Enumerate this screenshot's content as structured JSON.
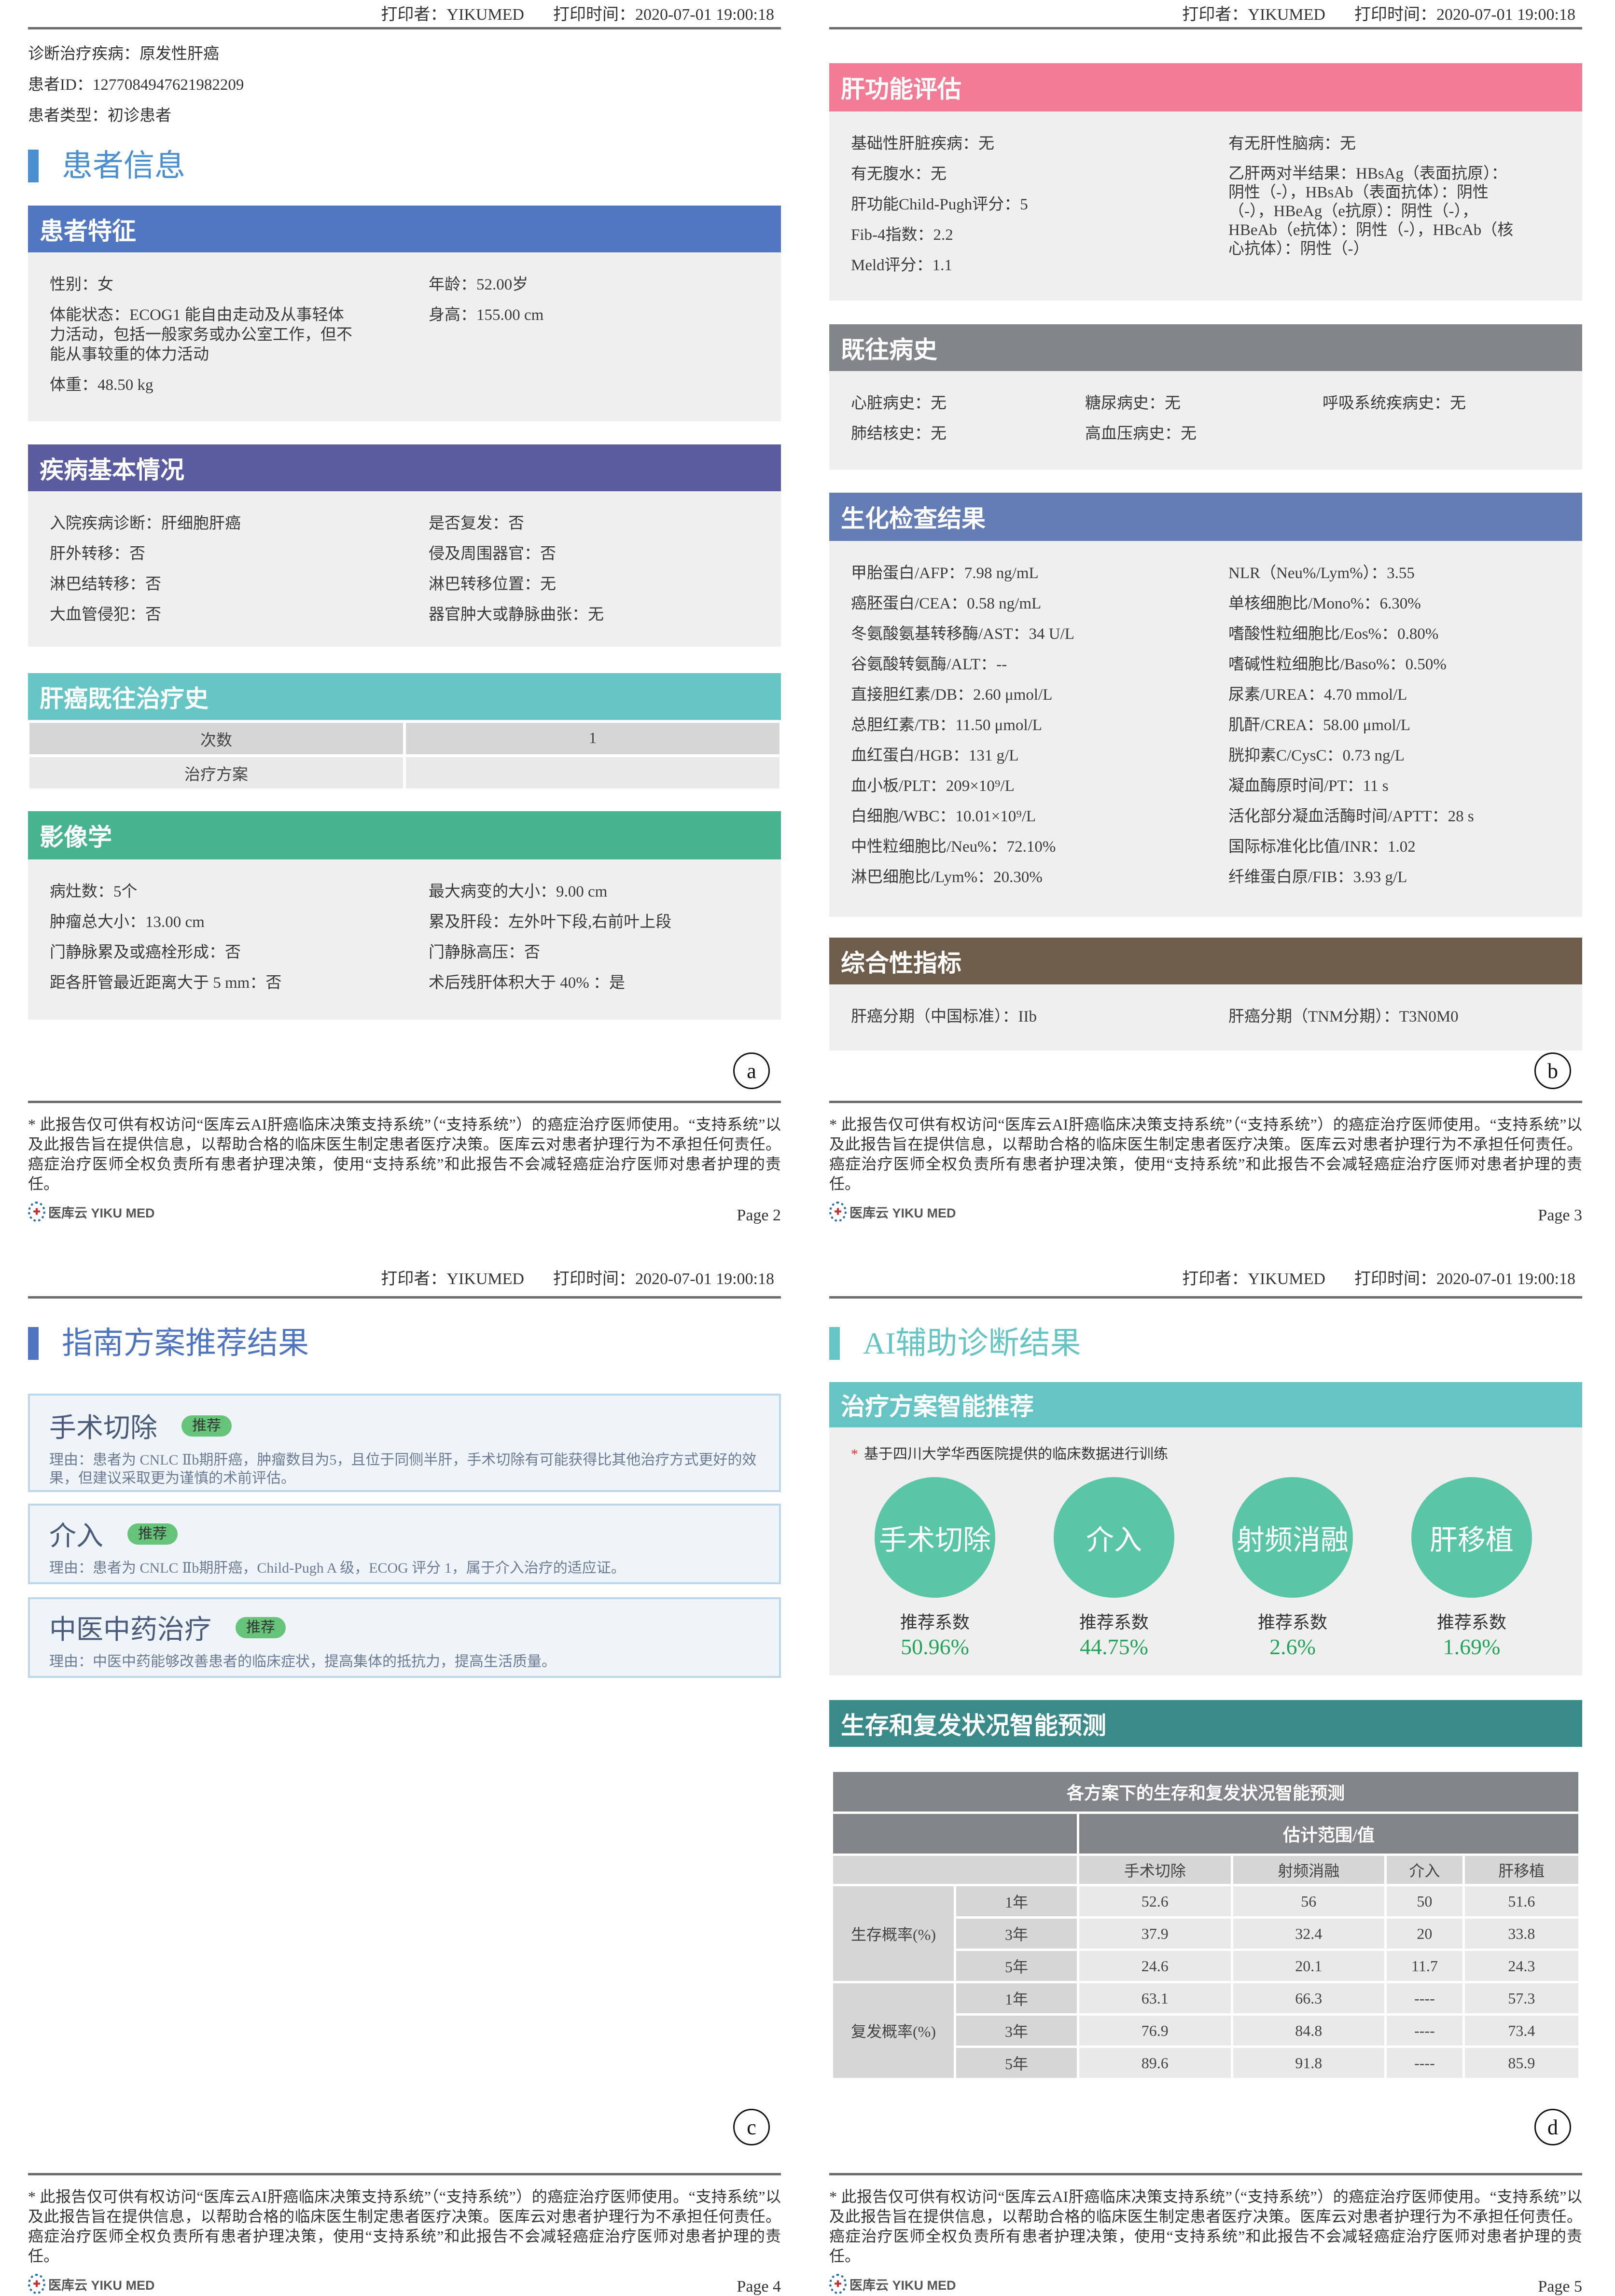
{
  "header": {
    "printer": "打印者：YIKUMED",
    "print_time": "打印时间：2020-07-01 19:00:18"
  },
  "footer": {
    "disclaimer": "* 此报告仅可供有权访问“医库云AI肝癌临床决策支持系统”（“支持系统”）的癌症治疗医师使用。“支持系统”以及此报告旨在提供信息，以帮助合格的临床医生制定患者医疗决策。医库云对患者护理行为不承担任何责任。 癌症治疗医师全权负责所有患者护理决策，使用“支持系统”和此报告不会减轻癌症治疗医师对患者护理的责任。",
    "logo_text": "医库云 YIKU MED"
  },
  "panels": {
    "a": "a",
    "b": "b",
    "c": "c",
    "d": "d"
  },
  "pages": {
    "p2": "Page 2",
    "p3": "Page 3",
    "p4": "Page 4",
    "p5": "Page 5"
  },
  "page_a": {
    "info": [
      "诊断治疗疾病：原发性肝癌",
      "患者ID：1277084947621982209",
      "患者类型：初诊患者"
    ],
    "title": "患者信息",
    "characteristics": {
      "title": "患者特征",
      "left": [
        "性别：女",
        "体能状态：ECOG1 能自由走动及从事轻体力活动，包括一般家务或办公室工作，但不能从事较重的体力活动",
        "体重：48.50 kg"
      ],
      "right": [
        "年龄：52.00岁",
        "身高：155.00 cm"
      ]
    },
    "disease": {
      "title": "疾病基本情况",
      "left": [
        "入院疾病诊断：肝细胞肝癌",
        "肝外转移：否",
        "淋巴结转移：否",
        "大血管侵犯：否"
      ],
      "right": [
        "是否复发：否",
        "侵及周围器官：否",
        "淋巴转移位置：无",
        "器官肿大或静脉曲张：无"
      ]
    },
    "history": {
      "title": "肝癌既往治疗史",
      "rows": [
        [
          "次数",
          "1"
        ],
        [
          "治疗方案",
          ""
        ]
      ]
    },
    "imaging": {
      "title": "影像学",
      "left": [
        "病灶数：5个",
        "肿瘤总大小：13.00 cm",
        "门静脉累及或癌栓形成：否",
        "距各肝管最近距离大于 5 mm：否"
      ],
      "right": [
        "最大病变的大小：9.00 cm",
        "累及肝段：左外叶下段,右前叶上段",
        "门静脉高压：否",
        "术后残肝体积大于 40% ：是"
      ]
    }
  },
  "page_b": {
    "liver": {
      "title": "肝功能评估",
      "left": [
        "基础性肝脏疾病：无",
        "有无腹水：无",
        "肝功能Child-Pugh评分：5",
        "Fib-4指数：2.2",
        "Meld评分：1.1"
      ],
      "right": [
        "有无肝性脑病：无",
        "乙肝两对半结果：HBsAg（表面抗原）：阴性（-），HBsAb（表面抗体）：阴性（-），HBeAg（e抗原）：阴性（-），HBeAb（e抗体）：阴性（-），HBcAb（核心抗体）：阴性（-）"
      ]
    },
    "past": {
      "title": "既往病史",
      "cols": [
        [
          "心脏病史：无",
          "肺结核史：无"
        ],
        [
          "糖尿病史：无",
          "高血压病史：无"
        ],
        [
          "呼吸系统疾病史：无"
        ]
      ]
    },
    "biochem": {
      "title": "生化检查结果",
      "left": [
        "甲胎蛋白/AFP：7.98 ng/mL",
        "癌胚蛋白/CEA：0.58 ng/mL",
        "冬氨酸氨基转移酶/AST：34 U/L",
        "谷氨酸转氨酶/ALT：--",
        "直接胆红素/DB：2.60 μmol/L",
        "总胆红素/TB：11.50 μmol/L",
        "血红蛋白/HGB：131 g/L",
        "血小板/PLT：209×10⁹/L",
        "白细胞/WBC：10.01×10⁹/L",
        "中性粒细胞比/Neu%：72.10%",
        "淋巴细胞比/Lym%：20.30%"
      ],
      "right": [
        "NLR（Neu%/Lym%）：3.55",
        "单核细胞比/Mono%：6.30%",
        "嗜酸性粒细胞比/Eos%：0.80%",
        "嗜碱性粒细胞比/Baso%：0.50%",
        "尿素/UREA：4.70 mmol/L",
        "肌酐/CREA：58.00 μmol/L",
        "胱抑素C/CysC：0.73 ng/L",
        "凝血酶原时间/PT：11 s",
        "活化部分凝血活酶时间/APTT：28 s",
        "国际标准化比值/INR：1.02",
        "纤维蛋白原/FIB：3.93 g/L"
      ]
    },
    "composite": {
      "title": "综合性指标",
      "left": "肝癌分期（中国标准）：IIb",
      "right": "肝癌分期（TNM分期）：T3N0M0"
    }
  },
  "page_c": {
    "title": "指南方案推荐结果",
    "cards": [
      {
        "name": "手术切除",
        "badge": "推荐",
        "reason": "理由：患者为 CNLC Ⅱb期肝癌，肿瘤数目为5，且位于同侧半肝，手术切除有可能获得比其他治疗方式更好的效果，但建议采取更为谨慎的术前评估。"
      },
      {
        "name": "介入",
        "badge": "推荐",
        "reason": "理由：患者为 CNLC Ⅱb期肝癌，Child-Pugh A 级，ECOG 评分 1，属于介入治疗的适应证。"
      },
      {
        "name": "中医中药治疗",
        "badge": "推荐",
        "reason": "理由：中医中药能够改善患者的临床症状，提高集体的抵抗力，提高生活质量。"
      }
    ]
  },
  "page_d": {
    "title": "AI辅助诊断结果",
    "recommend": {
      "title": "治疗方案智能推荐",
      "note_mark": "*",
      "note": "基于四川大学华西医院提供的临床数据进行训练",
      "items": [
        {
          "name": "手术切除",
          "label": "推荐系数",
          "value": "50.96%"
        },
        {
          "name": "介入",
          "label": "推荐系数",
          "value": "44.75%"
        },
        {
          "name": "射频消融",
          "label": "推荐系数",
          "value": "2.6%"
        },
        {
          "name": "肝移植",
          "label": "推荐系数",
          "value": "1.69%"
        }
      ]
    },
    "prediction": {
      "title": "生存和复发状况智能预测",
      "table_title": "各方案下的生存和复发状况智能预测",
      "group_header": "估计范围/值",
      "columns": [
        "手术切除",
        "射频消融",
        "介入",
        "肝移植"
      ],
      "groups": [
        {
          "label": "生存概率(%)",
          "rows": [
            {
              "year": "1年",
              "values": [
                "52.6",
                "56",
                "50",
                "51.6"
              ]
            },
            {
              "year": "3年",
              "values": [
                "37.9",
                "32.4",
                "20",
                "33.8"
              ]
            },
            {
              "year": "5年",
              "values": [
                "24.6",
                "20.1",
                "11.7",
                "24.3"
              ]
            }
          ]
        },
        {
          "label": "复发概率(%)",
          "rows": [
            {
              "year": "1年",
              "values": [
                "63.1",
                "66.3",
                "----",
                "57.3"
              ]
            },
            {
              "year": "3年",
              "values": [
                "76.9",
                "84.8",
                "----",
                "73.4"
              ]
            },
            {
              "year": "5年",
              "values": [
                "89.6",
                "91.8",
                "----",
                "85.9"
              ]
            }
          ]
        }
      ]
    }
  },
  "colors": {
    "patient_info": "#4a90d0",
    "characteristics": "#5176c2",
    "disease": "#5b5ba0",
    "history": "#66c5c5",
    "imaging": "#48b38f",
    "liver": "#f27b95",
    "past": "#828589",
    "biochem": "#647eb5",
    "composite": "#6f5d4c",
    "guideline": "#4f74c0",
    "ai": "#66c4c4",
    "prediction": "#3b8a8a",
    "badge": "#66c47a",
    "bubble": "#5bc6a6",
    "percent": "#23a45a"
  }
}
